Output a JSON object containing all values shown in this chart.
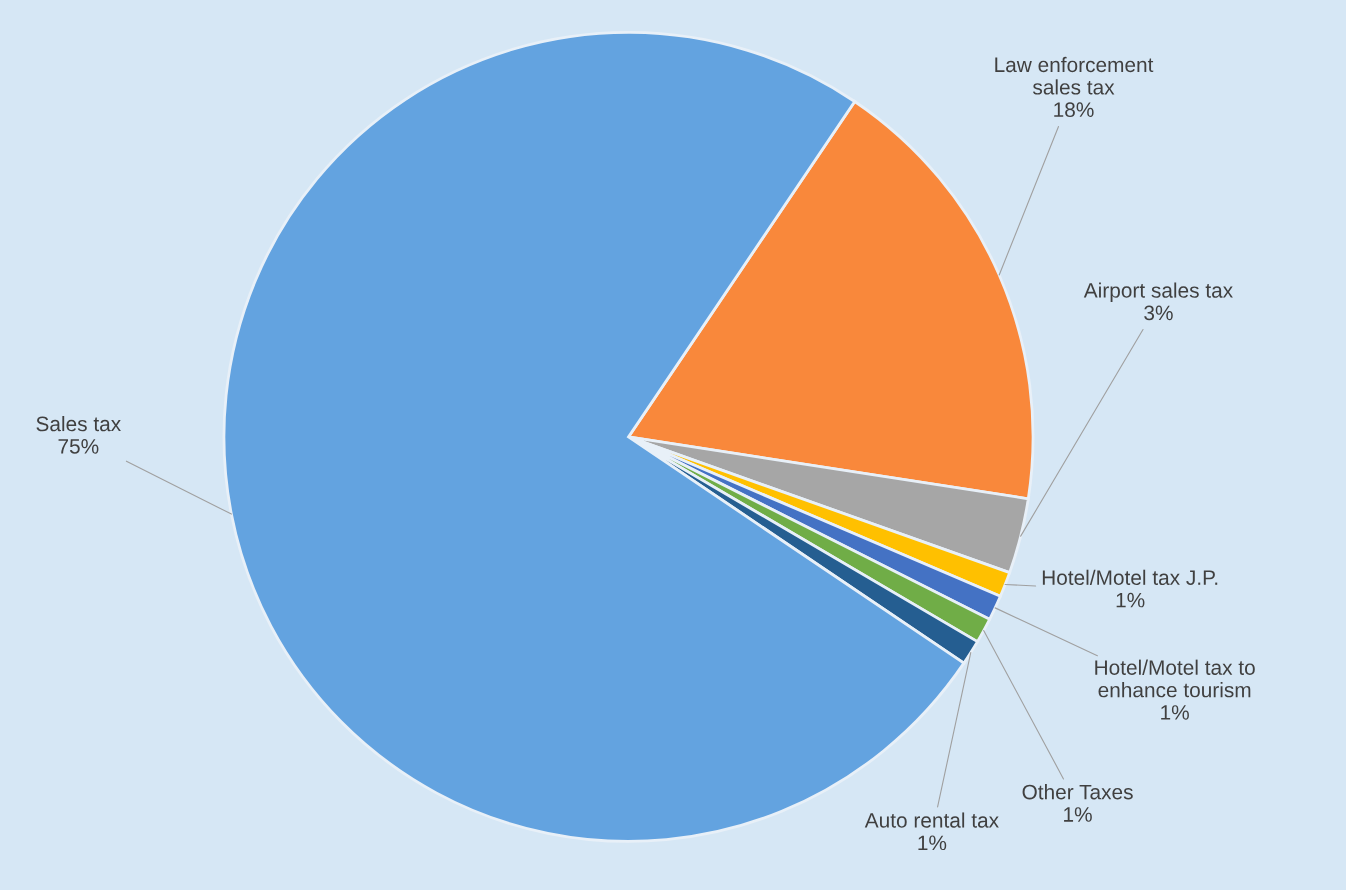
{
  "chart_data": {
    "type": "pie",
    "categories": [
      "Law enforcement\nsales tax",
      "Airport sales tax",
      "Hotel/Motel tax J.P.",
      "Hotel/Motel tax to\nenhance tourism",
      "Other Taxes",
      "Auto rental tax",
      "Sales tax"
    ],
    "values": [
      18,
      3,
      1,
      1,
      1,
      1,
      75
    ],
    "value_labels": [
      "18%",
      "3%",
      "1%",
      "1%",
      "1%",
      "1%",
      "75%"
    ],
    "colors": [
      "#f9883b",
      "#a6a6a6",
      "#ffc000",
      "#4472c4",
      "#70ad47",
      "#255e91",
      "#63a3e0"
    ],
    "legend": false
  }
}
